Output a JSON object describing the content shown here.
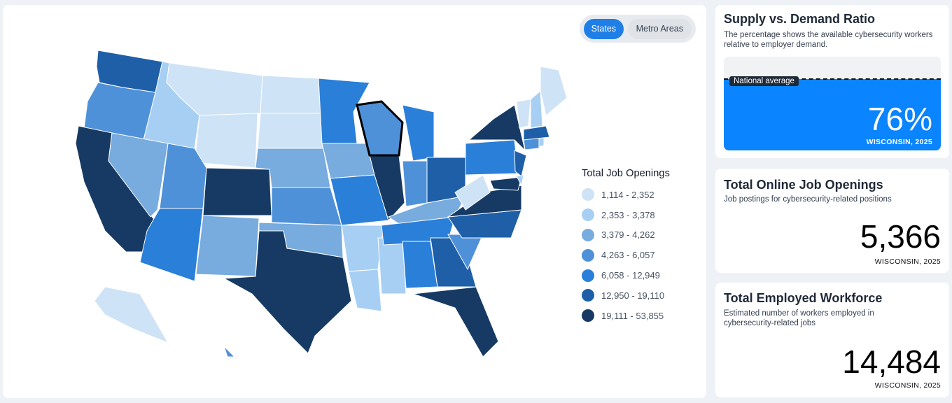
{
  "toggle": {
    "states_label": "States",
    "metro_label": "Metro Areas",
    "active": "States"
  },
  "legend": {
    "title": "Total Job Openings",
    "bins": [
      {
        "label": "1,114 - 2,352",
        "color": "#cfe3f6"
      },
      {
        "label": "2,353 - 3,378",
        "color": "#a7cff4"
      },
      {
        "label": "3,379 - 4,262",
        "color": "#78abde"
      },
      {
        "label": "4,263 - 6,057",
        "color": "#4f91d9"
      },
      {
        "label": "6,058 - 12,949",
        "color": "#2a7fd8"
      },
      {
        "label": "12,950 - 19,110",
        "color": "#1e5fa8"
      },
      {
        "label": "19,111 - 53,855",
        "color": "#163a63"
      }
    ]
  },
  "map_data": {
    "selected_state": "WI",
    "state_bins": {
      "WA": 5,
      "OR": 3,
      "CA": 6,
      "ID": 1,
      "NV": 2,
      "MT": 0,
      "WY": 0,
      "UT": 3,
      "AZ": 4,
      "CO": 6,
      "NM": 2,
      "ND": 0,
      "SD": 0,
      "NE": 2,
      "KS": 3,
      "OK": 2,
      "TX": 6,
      "MN": 4,
      "IA": 2,
      "MO": 4,
      "AR": 1,
      "LA": 1,
      "WI": 3,
      "IL": 6,
      "MS": 1,
      "MI": 4,
      "IN": 3,
      "KY": 2,
      "TN": 4,
      "AL": 4,
      "OH": 5,
      "GA": 5,
      "FL": 6,
      "SC": 3,
      "NC": 5,
      "VA": 6,
      "WV": 0,
      "PA": 4,
      "NY": 6,
      "MD": 6,
      "DE": 1,
      "NJ": 5,
      "CT": 3,
      "RI": 1,
      "MA": 5,
      "VT": 0,
      "NH": 1,
      "ME": 0,
      "AK": 0,
      "HI": 3
    }
  },
  "supply_card": {
    "title": "Supply vs. Demand Ratio",
    "description": "The percentage shows the available cybersecurity workers relative to employer demand.",
    "national_label": "National average",
    "value_text": "76%",
    "value_fraction": 0.76,
    "national_fraction": 0.77,
    "subtitle": "WISCONSIN, 2025"
  },
  "openings_card": {
    "title": "Total Online Job Openings",
    "description": "Job postings for cybersecurity-related positions",
    "value": "5,366",
    "subtitle": "WISCONSIN, 2025"
  },
  "workforce_card": {
    "title": "Total Employed Workforce",
    "description": "Estimated number of workers employed in cybersecurity-related jobs",
    "value": "14,484",
    "subtitle": "WISCONSIN, 2025"
  }
}
